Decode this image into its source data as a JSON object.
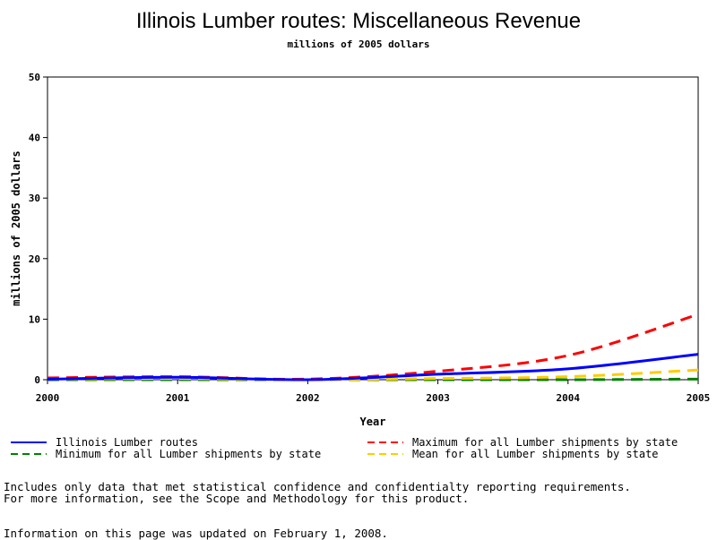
{
  "chart_data": {
    "type": "line",
    "title": "Illinois Lumber routes: Miscellaneous Revenue",
    "subtitle": "millions of 2005 dollars",
    "xlabel": "Year",
    "ylabel": "millions of 2005 dollars",
    "x": [
      2000,
      2001,
      2002,
      2003,
      2004,
      2005
    ],
    "xlim": [
      2000,
      2005
    ],
    "ylim": [
      0,
      50
    ],
    "yticks": [
      0,
      10,
      20,
      30,
      40,
      50
    ],
    "grid": false,
    "legend_position": "bottom",
    "series": [
      {
        "name": "Illinois Lumber routes",
        "color": "#0000ff",
        "dash": "solid",
        "values": [
          0.1,
          0.4,
          0.0,
          0.9,
          1.8,
          4.2
        ]
      },
      {
        "name": "Maximum for all Lumber shipments by state",
        "color": "#ff0000",
        "dash": "dashed",
        "values": [
          0.3,
          0.5,
          0.1,
          1.4,
          4.0,
          10.8
        ]
      },
      {
        "name": "Minimum for all Lumber shipments by state",
        "color": "#008000",
        "dash": "dashed",
        "values": [
          0.0,
          0.0,
          0.0,
          0.0,
          0.0,
          0.1
        ]
      },
      {
        "name": "Mean for all Lumber shipments by state",
        "color": "#ffcc00",
        "dash": "dashed",
        "values": [
          0.1,
          0.2,
          0.0,
          0.2,
          0.5,
          1.6
        ]
      }
    ]
  },
  "footnotes": {
    "line1": "Includes only data that met statistical confidence and confidentialty reporting requirements.",
    "line2": "For more information, see the Scope and Methodology for this product.",
    "line3": "Information on this page was updated on February 1, 2008."
  }
}
